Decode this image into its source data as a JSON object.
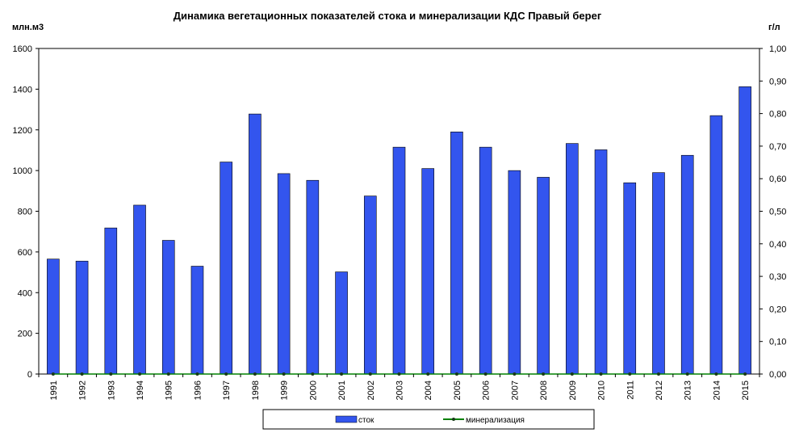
{
  "chart_data": {
    "type": "bar",
    "title": "Динамика вегетационных показателей стока и минерализации КДС Правый берег",
    "ylabel": "млн.м3",
    "y2label": "г/л",
    "ylim": [
      0,
      1600
    ],
    "y2lim": [
      0,
      1.0
    ],
    "yticks": [
      "0",
      "200",
      "400",
      "600",
      "800",
      "1000",
      "1200",
      "1400",
      "1600"
    ],
    "y2ticks": [
      "0,00",
      "0,10",
      "0,20",
      "0,30",
      "0,40",
      "0,50",
      "0,60",
      "0,70",
      "0,80",
      "0,90",
      "1,00"
    ],
    "categories": [
      "1991",
      "1992",
      "1993",
      "1994",
      "1995",
      "1996",
      "1997",
      "1998",
      "1999",
      "2000",
      "2001",
      "2002",
      "2003",
      "2004",
      "2005",
      "2006",
      "2007",
      "2008",
      "2009",
      "2010",
      "2011",
      "2012",
      "2013",
      "2014",
      "2015"
    ],
    "series": [
      {
        "name": "сток",
        "type": "bar",
        "color": "#3355ee",
        "values": [
          565,
          555,
          718,
          830,
          657,
          530,
          1042,
          1278,
          985,
          952,
          502,
          875,
          1115,
          1010,
          1190,
          1115,
          1000,
          967,
          1133,
          1102,
          940,
          990,
          1075,
          1270,
          1412
        ]
      },
      {
        "name": "минерализация",
        "type": "line",
        "color": "#008000",
        "values": [
          0,
          0,
          0,
          0,
          0,
          0,
          0,
          0,
          0,
          0,
          0,
          0,
          0,
          0,
          0,
          0,
          0,
          0,
          0,
          0,
          0,
          0,
          0,
          0,
          0
        ]
      }
    ],
    "grid": false,
    "legend_position": "bottom"
  }
}
